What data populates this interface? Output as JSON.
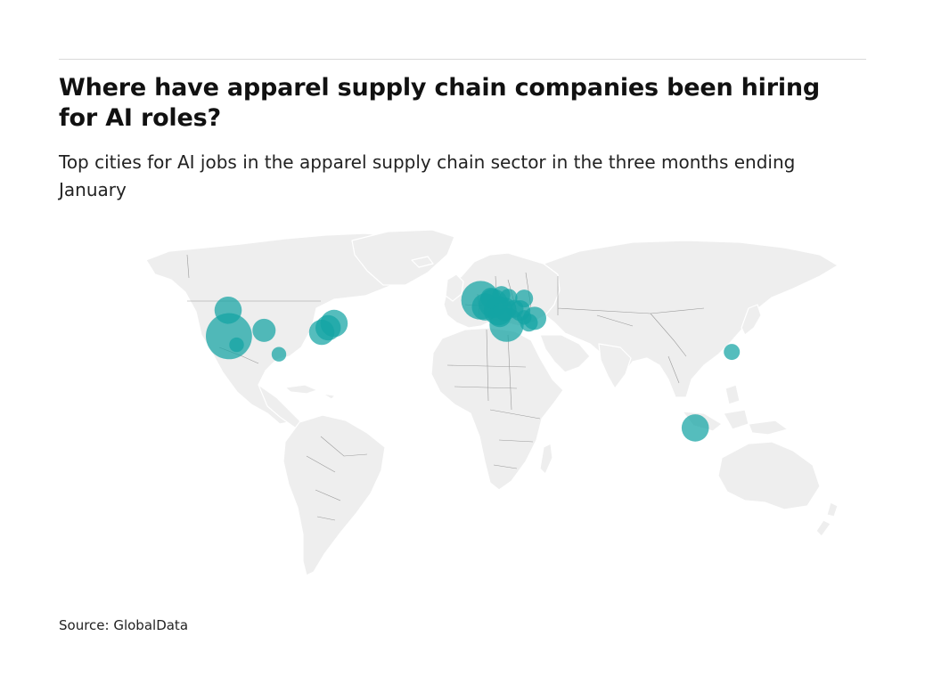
{
  "title": "Where have apparel supply chain companies been hiring for AI roles?",
  "subtitle": "Top cities for AI jobs in the apparel supply chain sector in the three months ending January",
  "source": "Source: GlobalData",
  "colors": {
    "bubble": "#14a4a4",
    "land": "#eeeeee",
    "border": "#9a9a9a",
    "rule": "#d9d9d9"
  },
  "chart_data": {
    "type": "scatter",
    "projection": "equirectangular-world",
    "bubbles": [
      {
        "lon": -121.9,
        "lat": 37.4,
        "size": 10
      },
      {
        "lon": -122.3,
        "lat": 47.6,
        "size": 3.5
      },
      {
        "lon": -118.2,
        "lat": 34.0,
        "size": 1
      },
      {
        "lon": -104.9,
        "lat": 39.7,
        "size": 2.5
      },
      {
        "lon": -97.7,
        "lat": 30.3,
        "size": 1
      },
      {
        "lon": -71.0,
        "lat": 42.4,
        "size": 3.5
      },
      {
        "lon": -73.9,
        "lat": 40.7,
        "size": 3
      },
      {
        "lon": -77.0,
        "lat": 38.9,
        "size": 3
      },
      {
        "lon": -0.1,
        "lat": 51.5,
        "size": 7
      },
      {
        "lon": 2.3,
        "lat": 48.9,
        "size": 3.5
      },
      {
        "lon": 4.9,
        "lat": 52.4,
        "size": 2
      },
      {
        "lon": 6.1,
        "lat": 50.3,
        "size": 4
      },
      {
        "lon": 8.5,
        "lat": 47.4,
        "size": 4
      },
      {
        "lon": 9.2,
        "lat": 45.5,
        "size": 2.5
      },
      {
        "lon": 11.6,
        "lat": 48.1,
        "size": 2.5
      },
      {
        "lon": 10.0,
        "lat": 53.6,
        "size": 1.5
      },
      {
        "lon": 13.4,
        "lat": 52.5,
        "size": 1.5
      },
      {
        "lon": 16.4,
        "lat": 48.2,
        "size": 1.5
      },
      {
        "lon": 19.0,
        "lat": 47.5,
        "size": 2
      },
      {
        "lon": 21.0,
        "lat": 52.2,
        "size": 1.5
      },
      {
        "lon": 26.1,
        "lat": 44.4,
        "size": 2.5
      },
      {
        "lon": 23.3,
        "lat": 42.7,
        "size": 1.5
      },
      {
        "lon": 21.0,
        "lat": 44.8,
        "size": 1
      },
      {
        "lon": 12.5,
        "lat": 41.9,
        "size": 5.5
      },
      {
        "lon": 121.5,
        "lat": 31.2,
        "size": 1.2
      },
      {
        "lon": 103.8,
        "lat": 1.35,
        "size": 3.5
      }
    ]
  }
}
